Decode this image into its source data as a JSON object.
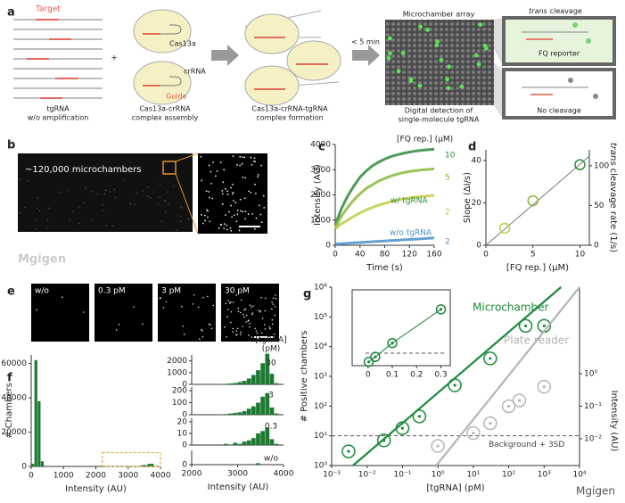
{
  "panel_labels": [
    "a",
    "b",
    "c",
    "d",
    "e",
    "f",
    "g"
  ],
  "a": {
    "target": "Target",
    "tgrna": [
      "tgRNA",
      "w/o amplification"
    ],
    "plus": "+",
    "cas13a": "Cas13a",
    "crrna": "crRNA",
    "guide": "Guide",
    "assembly": [
      "Cas13a-crRNA",
      "complex assembly"
    ],
    "formation": [
      "Cas13a-crRNA-tgRNA",
      "complex formation"
    ],
    "time": "< 5 min",
    "array_title": "Microchamber array",
    "detection": [
      "Digital detection of",
      "single-molecule tgRNA"
    ],
    "cleavage_title": [
      "trans",
      "cleavage"
    ],
    "fq_reporter": "FQ reporter",
    "no_cleavage": "No cleavage"
  },
  "b": {
    "label": "~120,000 microchambers"
  },
  "e": {
    "labels": [
      "w/o",
      "0.3 pM",
      "3 pM",
      "30 pM"
    ]
  },
  "watermarks": [
    "Mgigen",
    "Mgigen"
  ],
  "chart_data": [
    {
      "type": "line",
      "ylabel": "Intensity (AU)",
      "xlabel": "Time (s)",
      "legend_title": "[FQ rep.] (μM)",
      "x": [
        0,
        10,
        20,
        30,
        40,
        50,
        60,
        70,
        80,
        90,
        100,
        110,
        120,
        130,
        140,
        150,
        160
      ],
      "xlim": [
        0,
        160
      ],
      "xticks": [
        0,
        40,
        80,
        120,
        160
      ],
      "ylim": [
        0,
        4000
      ],
      "yticks": [
        0,
        1000,
        2000,
        3000,
        4000
      ],
      "series": [
        {
          "name": "10",
          "color": "#2e8b3a",
          "values": [
            800,
            1450,
            1950,
            2350,
            2700,
            2950,
            3150,
            3300,
            3420,
            3520,
            3590,
            3650,
            3700,
            3740,
            3770,
            3790,
            3810
          ]
        },
        {
          "name": "5",
          "color": "#8ab83a",
          "values": [
            700,
            1150,
            1500,
            1800,
            2050,
            2250,
            2400,
            2550,
            2650,
            2750,
            2820,
            2880,
            2930,
            2960,
            2990,
            3010,
            3030
          ]
        },
        {
          "name": "2",
          "color": "#bccd45",
          "values": [
            650,
            850,
            1000,
            1150,
            1280,
            1400,
            1500,
            1590,
            1660,
            1730,
            1790,
            1840,
            1880,
            1910,
            1940,
            1960,
            1980
          ]
        },
        {
          "name": "2",
          "color": "#4a90c8",
          "values": [
            50,
            65,
            80,
            95,
            110,
            125,
            140,
            155,
            170,
            185,
            200,
            215,
            230,
            245,
            260,
            275,
            290
          ]
        }
      ],
      "annotations": [
        "w/ tgRNA",
        "w/o tgRNA"
      ]
    },
    {
      "type": "scatter",
      "xlabel": "[FQ rep.] (μM)",
      "ylabel": "Slope (ΔI/s)",
      "y2label": [
        "trans",
        "cleavage rate (1/s)"
      ],
      "x": [
        2,
        5,
        10
      ],
      "values": [
        8,
        21,
        38
      ],
      "colors": [
        "#bccd45",
        "#8ab83a",
        "#2e8b3a"
      ],
      "xlim": [
        0,
        11
      ],
      "xticks": [
        0,
        5,
        10
      ],
      "ylim": [
        0,
        45
      ],
      "yticks": [
        0,
        20,
        40
      ],
      "y2lim": [
        0,
        120
      ],
      "y2ticks": [
        0,
        50,
        100
      ],
      "fit": {
        "x": [
          0,
          11
        ],
        "y": [
          0,
          42
        ]
      }
    },
    {
      "type": "histogram",
      "ylabel": "# Chambers",
      "xlabel": "Intensity (AU)",
      "color": "#1e7a33",
      "bins": [
        0,
        100,
        200,
        300,
        400,
        3000,
        3200,
        3400,
        3600,
        3800,
        4000
      ],
      "values": [
        1500,
        62000,
        38000,
        3000,
        0,
        100,
        300,
        800,
        1500,
        200
      ],
      "xlim": [
        0,
        4000
      ],
      "xticks": [
        0,
        1000,
        2000,
        3000,
        4000
      ],
      "ylim": [
        0,
        65000
      ],
      "yticks": [
        0,
        20000,
        40000,
        60000
      ],
      "highlight": {
        "x": [
          2200,
          4000
        ],
        "y": [
          0,
          8000
        ]
      }
    },
    {
      "type": "histogram",
      "label": "30",
      "legend_title": [
        "[tgRNA]",
        "(pM)"
      ],
      "color": "#1e7a33",
      "bins": [
        2000,
        2100,
        2200,
        2300,
        2400,
        2500,
        2600,
        2700,
        2800,
        2900,
        3000,
        3100,
        3200,
        3300,
        3400,
        3500,
        3600,
        3700,
        3800,
        3900,
        4000
      ],
      "values": [
        0,
        0,
        0,
        0,
        10,
        20,
        30,
        50,
        80,
        120,
        200,
        300,
        500,
        800,
        1200,
        1800,
        2600,
        900,
        100,
        0
      ],
      "xlim": [
        2000,
        4000
      ],
      "ylim": [
        0,
        2500
      ],
      "yticks": [
        0,
        1000,
        2000
      ]
    },
    {
      "type": "histogram",
      "label": "3",
      "color": "#1e7a33",
      "bins": [
        2000,
        2100,
        2200,
        2300,
        2400,
        2500,
        2600,
        2700,
        2800,
        2900,
        3000,
        3100,
        3200,
        3300,
        3400,
        3500,
        3600,
        3700,
        3800,
        3900,
        4000
      ],
      "values": [
        0,
        0,
        0,
        0,
        0,
        2,
        3,
        5,
        10,
        15,
        20,
        30,
        50,
        70,
        100,
        150,
        180,
        60,
        10,
        0
      ],
      "xlim": [
        2000,
        4000
      ],
      "ylim": [
        0,
        230
      ],
      "yticks": [
        0,
        100,
        200
      ]
    },
    {
      "type": "histogram",
      "label": "0.3",
      "color": "#1e7a33",
      "bins": [
        2000,
        2100,
        2200,
        2300,
        2400,
        2500,
        2600,
        2700,
        2800,
        2900,
        3000,
        3100,
        3200,
        3300,
        3400,
        3500,
        3600,
        3700,
        3800,
        3900,
        4000
      ],
      "values": [
        0,
        0,
        0,
        0,
        0,
        0,
        0,
        1,
        0,
        2,
        1,
        3,
        4,
        6,
        10,
        12,
        15,
        5,
        1,
        0
      ],
      "xlim": [
        2000,
        4000
      ],
      "ylim": [
        0,
        23
      ],
      "yticks": [
        0,
        10,
        20
      ]
    },
    {
      "type": "histogram",
      "label": "w/o",
      "xlabel": "Intensity (AU)",
      "color": "#1e7a33",
      "bins": [
        2000,
        2100,
        2200,
        2300,
        2400,
        2500,
        2600,
        2700,
        2800,
        2900,
        3000,
        3100,
        3200,
        3300,
        3400,
        3500,
        3600,
        3700,
        3800,
        3900,
        4000
      ],
      "values": [
        0,
        0,
        0,
        0,
        0,
        0,
        0,
        0,
        0,
        0,
        0,
        0,
        0,
        0,
        1,
        0,
        0,
        0,
        0,
        0
      ],
      "xlim": [
        2000,
        4000
      ],
      "xticks": [
        2000,
        3000,
        4000
      ],
      "ylim": [
        0,
        10
      ],
      "yticks": [
        0
      ]
    },
    {
      "type": "scatter",
      "log": true,
      "xlabel": "[tgRNA] (pM)",
      "ylabel": "# Positive chambers",
      "y2label": "Intensity (AU)",
      "xlim": [
        0.001,
        10000
      ],
      "xticks": [
        {
          "value": 0.001,
          "label": "10⁻³"
        },
        {
          "value": 0.01,
          "label": "10⁻²"
        },
        {
          "value": 0.1,
          "label": "10⁻¹"
        },
        {
          "value": 1,
          "label": "10⁰"
        },
        {
          "value": 10,
          "label": "10¹"
        },
        {
          "value": 100,
          "label": "10²"
        },
        {
          "value": 1000,
          "label": "10³"
        },
        {
          "value": 10000,
          "label": "10⁴"
        }
      ],
      "ylim": [
        1,
        1000000
      ],
      "yticks": [
        {
          "value": 1,
          "label": "10⁰"
        },
        {
          "value": 10,
          "label": "10¹"
        },
        {
          "value": 100,
          "label": "10²"
        },
        {
          "value": 1000,
          "label": "10³"
        },
        {
          "value": 10000,
          "label": "10⁴"
        },
        {
          "value": 100000,
          "label": "10⁵"
        },
        {
          "value": 1000000,
          "label": "10⁶"
        }
      ],
      "y2lim": [
        0.0015,
        460
      ],
      "y2ticks": [
        {
          "value": 0.01,
          "label": "10⁻²"
        },
        {
          "value": 0.1,
          "label": "10⁻¹"
        },
        {
          "value": 1,
          "label": "10⁰"
        }
      ],
      "series": [
        {
          "name": "Microchamber",
          "color": "#1e8a3c",
          "x": [
            0.003,
            0.03,
            0.1,
            0.3,
            3,
            30,
            300,
            1000
          ],
          "values": [
            3,
            7,
            18,
            45,
            500,
            4000,
            50000,
            50000
          ],
          "fit": {
            "x": [
              0.004,
              3000
            ],
            "y": [
              1,
              1000000
            ]
          }
        },
        {
          "name": "Plate reader",
          "color": "#b5b5b5",
          "axis": "y2",
          "x": [
            1,
            10,
            30,
            100,
            200,
            1000
          ],
          "values": [
            0.006,
            0.015,
            0.03,
            0.1,
            0.15,
            0.4
          ],
          "fit": {
            "x": [
              0.9,
              10000
            ],
            "y": [
              0.0015,
              460
            ]
          }
        }
      ],
      "background": 10,
      "background_label": "Background + 3SD"
    },
    {
      "type": "scatter",
      "inset": true,
      "xlim": [
        -0.01,
        0.32
      ],
      "xticks": [
        0,
        0.1,
        0.2,
        0.3
      ],
      "ylim": [
        0,
        57
      ],
      "series": [
        {
          "color": "#1e8a3c",
          "x": [
            0.003,
            0.03,
            0.1,
            0.3
          ],
          "values": [
            3,
            7,
            18,
            45
          ]
        }
      ],
      "background": 10
    }
  ]
}
